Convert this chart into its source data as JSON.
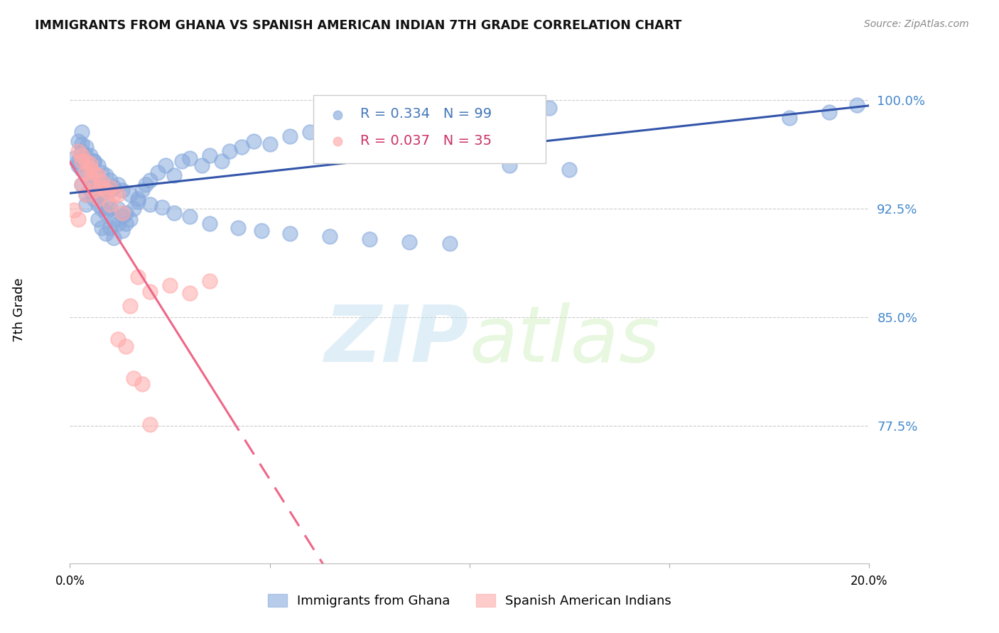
{
  "title": "IMMIGRANTS FROM GHANA VS SPANISH AMERICAN INDIAN 7TH GRADE CORRELATION CHART",
  "source": "Source: ZipAtlas.com",
  "ylabel": "7th Grade",
  "xlim": [
    0.0,
    0.2
  ],
  "ylim": [
    0.68,
    1.03
  ],
  "blue_R": 0.334,
  "blue_N": 99,
  "pink_R": 0.037,
  "pink_N": 35,
  "blue_color": "#88AADD",
  "pink_color": "#FFAAAA",
  "trend_blue": "#3355AA",
  "trend_pink": "#EE6688",
  "watermark_zip_color": "#BBDDEE",
  "watermark_atlas_color": "#CCEEBB",
  "blue_x": [
    0.001,
    0.002,
    0.002,
    0.002,
    0.003,
    0.003,
    0.003,
    0.003,
    0.004,
    0.004,
    0.004,
    0.004,
    0.005,
    0.005,
    0.005,
    0.006,
    0.006,
    0.006,
    0.007,
    0.007,
    0.007,
    0.008,
    0.008,
    0.008,
    0.009,
    0.009,
    0.009,
    0.01,
    0.01,
    0.01,
    0.011,
    0.011,
    0.012,
    0.012,
    0.013,
    0.013,
    0.014,
    0.014,
    0.015,
    0.016,
    0.017,
    0.018,
    0.019,
    0.02,
    0.022,
    0.024,
    0.026,
    0.028,
    0.03,
    0.033,
    0.035,
    0.038,
    0.04,
    0.043,
    0.046,
    0.05,
    0.055,
    0.06,
    0.065,
    0.07,
    0.075,
    0.08,
    0.085,
    0.09,
    0.095,
    0.1,
    0.105,
    0.11,
    0.115,
    0.12,
    0.003,
    0.004,
    0.005,
    0.006,
    0.007,
    0.008,
    0.009,
    0.01,
    0.011,
    0.012,
    0.013,
    0.015,
    0.017,
    0.02,
    0.023,
    0.026,
    0.03,
    0.035,
    0.042,
    0.048,
    0.055,
    0.065,
    0.075,
    0.085,
    0.095,
    0.11,
    0.125,
    0.18,
    0.19,
    0.197
  ],
  "blue_y": [
    0.96,
    0.958,
    0.972,
    0.955,
    0.965,
    0.978,
    0.952,
    0.942,
    0.948,
    0.962,
    0.935,
    0.928,
    0.945,
    0.955,
    0.938,
    0.942,
    0.932,
    0.958,
    0.94,
    0.928,
    0.918,
    0.925,
    0.912,
    0.935,
    0.922,
    0.908,
    0.93,
    0.925,
    0.912,
    0.938,
    0.918,
    0.905,
    0.915,
    0.925,
    0.92,
    0.91,
    0.915,
    0.922,
    0.918,
    0.925,
    0.93,
    0.938,
    0.942,
    0.945,
    0.95,
    0.955,
    0.948,
    0.958,
    0.96,
    0.955,
    0.962,
    0.958,
    0.965,
    0.968,
    0.972,
    0.97,
    0.975,
    0.978,
    0.98,
    0.982,
    0.985,
    0.983,
    0.988,
    0.99,
    0.986,
    0.992,
    0.989,
    0.993,
    0.991,
    0.995,
    0.97,
    0.968,
    0.962,
    0.958,
    0.955,
    0.95,
    0.948,
    0.945,
    0.94,
    0.942,
    0.938,
    0.935,
    0.932,
    0.928,
    0.926,
    0.922,
    0.92,
    0.915,
    0.912,
    0.91,
    0.908,
    0.906,
    0.904,
    0.902,
    0.901,
    0.955,
    0.952,
    0.988,
    0.992,
    0.997
  ],
  "pink_x": [
    0.001,
    0.002,
    0.002,
    0.003,
    0.003,
    0.004,
    0.004,
    0.005,
    0.005,
    0.006,
    0.007,
    0.008,
    0.009,
    0.01,
    0.011,
    0.012,
    0.013,
    0.015,
    0.017,
    0.02,
    0.025,
    0.03,
    0.035,
    0.003,
    0.004,
    0.005,
    0.006,
    0.007,
    0.008,
    0.01,
    0.012,
    0.014,
    0.016,
    0.018,
    0.02
  ],
  "pink_y": [
    0.924,
    0.918,
    0.965,
    0.942,
    0.958,
    0.935,
    0.95,
    0.956,
    0.945,
    0.938,
    0.932,
    0.94,
    0.938,
    0.928,
    0.935,
    0.935,
    0.922,
    0.858,
    0.878,
    0.868,
    0.872,
    0.867,
    0.875,
    0.962,
    0.958,
    0.953,
    0.95,
    0.948,
    0.944,
    0.94,
    0.835,
    0.83,
    0.808,
    0.804,
    0.776
  ]
}
